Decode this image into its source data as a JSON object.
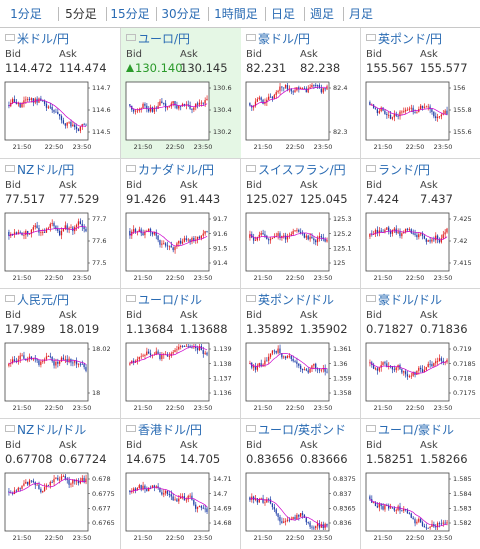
{
  "tabs": [
    {
      "label": "1分足"
    },
    {
      "label": "5分足"
    },
    {
      "label": "15分足"
    },
    {
      "label": "30分足"
    },
    {
      "label": "1時間足"
    },
    {
      "label": "日足"
    },
    {
      "label": "週足"
    },
    {
      "label": "月足"
    }
  ],
  "active_tab": "5分足",
  "colors": {
    "link": "#2a6bb3",
    "up_candle": "#e02020",
    "down_candle": "#1f3fa8",
    "moving_average": "#cc00cc",
    "selected_bg": "#e5f7e5"
  },
  "pairs": [
    {
      "name": "米ドル/円",
      "flag": "us-flag-icon",
      "bid_label": "Bid",
      "ask_label": "Ask",
      "bid": "114.472",
      "ask": "114.474",
      "yticks": [
        "114.7",
        "114.6",
        "114.5"
      ],
      "xticks": [
        "21:50",
        "22:50",
        "23:50"
      ]
    },
    {
      "name": "ユーロ/円",
      "flag": "eu-flag-icon",
      "bid_label": "Bid",
      "ask_label": "Ask",
      "bid": "130.140",
      "ask": "130.145",
      "selected": true,
      "bid_up": true,
      "yticks": [
        "130.6",
        "130.4",
        "130.2"
      ],
      "xticks": [
        "21:50",
        "22:50",
        "23:50"
      ]
    },
    {
      "name": "豪ドル/円",
      "flag": "au-flag-icon",
      "bid_label": "Bid",
      "ask_label": "Ask",
      "bid": "82.231",
      "ask": "82.238",
      "yticks": [
        "82.4",
        "82.3"
      ],
      "xticks": [
        "21:50",
        "22:50",
        "23:50"
      ]
    },
    {
      "name": "英ポンド/円",
      "flag": "uk-flag-icon",
      "bid_label": "Bid",
      "ask_label": "Ask",
      "bid": "155.567",
      "ask": "155.577",
      "yticks": [
        "156",
        "155.8",
        "155.6"
      ],
      "xticks": [
        "21:50",
        "22:50",
        "23:50"
      ]
    },
    {
      "name": "NZドル/円",
      "flag": "nz-flag-icon",
      "bid_label": "Bid",
      "ask_label": "Ask",
      "bid": "77.517",
      "ask": "77.529",
      "yticks": [
        "77.7",
        "77.6",
        "77.5"
      ],
      "xticks": [
        "21:50",
        "22:50",
        "23:50"
      ]
    },
    {
      "name": "カナダドル/円",
      "flag": "ca-flag-icon",
      "bid_label": "Bid",
      "ask_label": "Ask",
      "bid": "91.426",
      "ask": "91.443",
      "yticks": [
        "91.7",
        "91.6",
        "91.5",
        "91.4"
      ],
      "xticks": [
        "21:50",
        "22:50",
        "23:50"
      ]
    },
    {
      "name": "スイスフラン/円",
      "flag": "ch-flag-icon",
      "bid_label": "Bid",
      "ask_label": "Ask",
      "bid": "125.027",
      "ask": "125.045",
      "yticks": [
        "125.3",
        "125.2",
        "125.1",
        "125"
      ],
      "xticks": [
        "21:50",
        "22:50",
        "23:50"
      ]
    },
    {
      "name": "ランド/円",
      "flag": "za-flag-icon",
      "bid_label": "Bid",
      "ask_label": "Ask",
      "bid": "7.424",
      "ask": "7.437",
      "yticks": [
        "7.425",
        "7.42",
        "7.415"
      ],
      "xticks": [
        "21:50",
        "22:50",
        "23:50"
      ]
    },
    {
      "name": "人民元/円",
      "flag": "cn-flag-icon",
      "bid_label": "Bid",
      "ask_label": "Ask",
      "bid": "17.989",
      "ask": "18.019",
      "yticks": [
        "18.02",
        "18"
      ],
      "xticks": [
        "21:50",
        "22:50",
        "23:50"
      ]
    },
    {
      "name": "ユーロ/ドル",
      "flag": "eu-flag-icon",
      "bid_label": "Bid",
      "ask_label": "Ask",
      "bid": "1.13684",
      "ask": "1.13688",
      "yticks": [
        "1.139",
        "1.138",
        "1.137",
        "1.136"
      ],
      "xticks": [
        "21:50",
        "22:50",
        "23:50"
      ]
    },
    {
      "name": "英ポンド/ドル",
      "flag": "uk-flag-icon",
      "bid_label": "Bid",
      "ask_label": "Ask",
      "bid": "1.35892",
      "ask": "1.35902",
      "yticks": [
        "1.361",
        "1.36",
        "1.359",
        "1.358"
      ],
      "xticks": [
        "21:50",
        "22:50",
        "23:50"
      ]
    },
    {
      "name": "豪ドル/ドル",
      "flag": "au-flag-icon",
      "bid_label": "Bid",
      "ask_label": "Ask",
      "bid": "0.71827",
      "ask": "0.71836",
      "yticks": [
        "0.719",
        "0.7185",
        "0.718",
        "0.7175"
      ],
      "xticks": [
        "21:50",
        "22:50",
        "23:50"
      ]
    },
    {
      "name": "NZドル/ドル",
      "flag": "nz-flag-icon",
      "bid_label": "Bid",
      "ask_label": "Ask",
      "bid": "0.67708",
      "ask": "0.67724",
      "yticks": [
        "0.678",
        "0.6775",
        "0.677",
        "0.6765"
      ],
      "xticks": [
        "21:50",
        "22:50",
        "23:50"
      ]
    },
    {
      "name": "香港ドル/円",
      "flag": "hk-flag-icon",
      "bid_label": "Bid",
      "ask_label": "Ask",
      "bid": "14.675",
      "ask": "14.705",
      "yticks": [
        "14.71",
        "14.7",
        "14.69",
        "14.68"
      ],
      "xticks": [
        "21:50",
        "22:50",
        "23:50"
      ]
    },
    {
      "name": "ユーロ/英ポンド",
      "flag": "eu-flag-icon",
      "bid_label": "Bid",
      "ask_label": "Ask",
      "bid": "0.83656",
      "ask": "0.83666",
      "yticks": [
        "0.8375",
        "0.837",
        "0.8365",
        "0.836"
      ],
      "xticks": [
        "21:50",
        "22:50",
        "23:50"
      ]
    },
    {
      "name": "ユーロ/豪ドル",
      "flag": "eu-flag-icon",
      "bid_label": "Bid",
      "ask_label": "Ask",
      "bid": "1.58251",
      "ask": "1.58266",
      "yticks": [
        "1.585",
        "1.584",
        "1.583",
        "1.582"
      ],
      "xticks": [
        "21:50",
        "22:50",
        "23:50"
      ]
    }
  ]
}
